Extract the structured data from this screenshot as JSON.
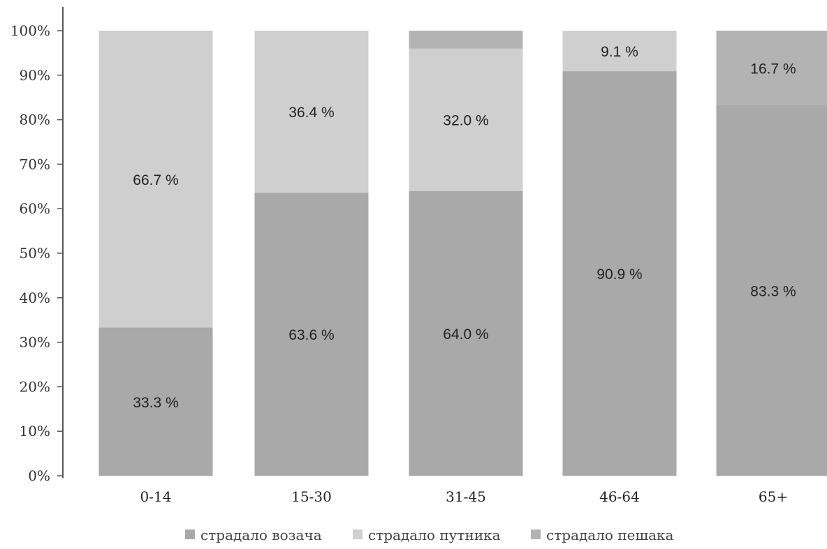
{
  "chart_data": {
    "type": "bar",
    "stacked": true,
    "categories": [
      "0-14",
      "15-30",
      "31-45",
      "46-64",
      "65+"
    ],
    "series": [
      {
        "name": "страдало возача",
        "values": [
          33.3,
          63.6,
          64.0,
          90.9,
          83.3
        ],
        "labels": [
          "33.3 %",
          "63.6 %",
          "64.0 %",
          "90.9 %",
          "83.3 %"
        ],
        "color": "#a9a9a9"
      },
      {
        "name": "страдало путника",
        "values": [
          66.7,
          36.4,
          32.0,
          9.1,
          0
        ],
        "labels": [
          "66.7 %",
          "36.4 %",
          "32.0 %",
          "9.1 %",
          ""
        ],
        "color": "#cfcfcf"
      },
      {
        "name": "страдало пешака",
        "values": [
          0,
          0,
          4.0,
          0,
          16.7
        ],
        "labels": [
          "",
          "",
          "",
          "",
          "16.7 %"
        ],
        "color": "#b3b3b3"
      }
    ],
    "yticks": [
      "0%",
      "10%",
      "20%",
      "30%",
      "40%",
      "50%",
      "60%",
      "70%",
      "80%",
      "90%",
      "100%"
    ],
    "ylim": [
      0,
      100
    ],
    "grid": false,
    "legend_position": "bottom",
    "title": "",
    "xlabel": "",
    "ylabel": ""
  }
}
